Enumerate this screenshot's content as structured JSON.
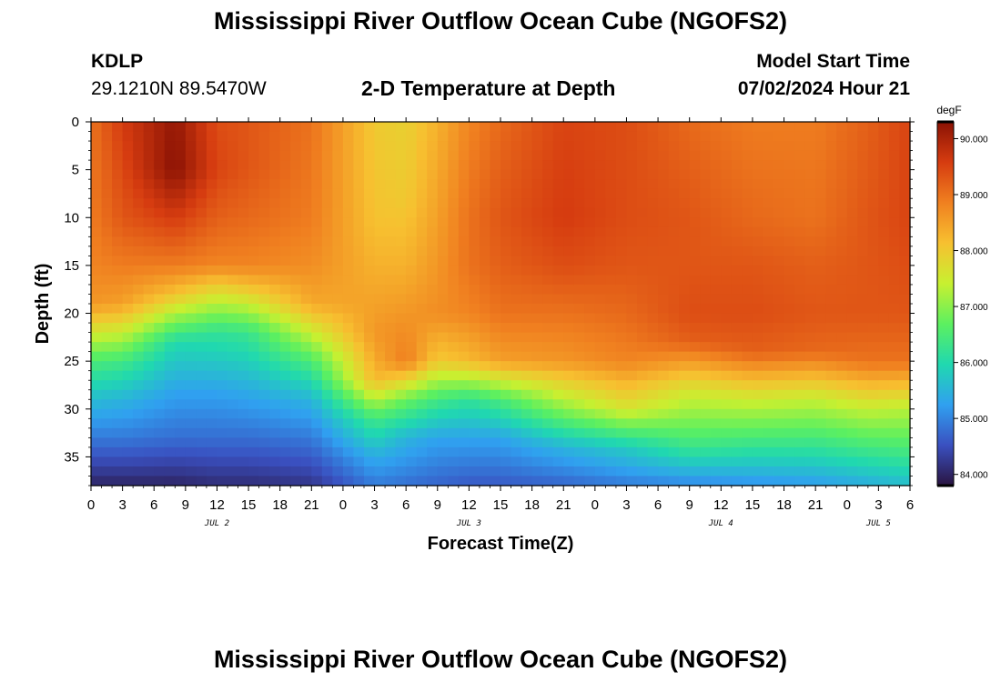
{
  "page": {
    "title_top": "Mississippi River Outflow Ocean Cube (NGOFS2)",
    "title_bottom": "Mississippi River Outflow Ocean Cube (NGOFS2)",
    "station": {
      "id": "KDLP",
      "coords": "29.1210N  89.5470W"
    },
    "subtitle": "2-D Temperature at Depth",
    "model_start": {
      "label": "Model Start Time",
      "value": "07/02/2024 Hour 21"
    }
  },
  "chart_data": {
    "type": "heatmap",
    "title": "2-D Temperature at Depth",
    "xlabel": "Forecast Time(Z)",
    "ylabel": "Depth (ft)",
    "x_hours_range": [
      0,
      78
    ],
    "x_tick_labels": [
      "0",
      "3",
      "6",
      "9",
      "12",
      "15",
      "18",
      "21",
      "0",
      "3",
      "6",
      "9",
      "12",
      "15",
      "18",
      "21",
      "0",
      "3",
      "6",
      "9",
      "12",
      "15",
      "18",
      "21",
      "0",
      "3",
      "6"
    ],
    "date_labels": [
      {
        "label": "JUL 2",
        "hour": 12
      },
      {
        "label": "JUL 3",
        "hour": 36
      },
      {
        "label": "JUL 4",
        "hour": 60
      },
      {
        "label": "JUL 5",
        "hour": 75
      }
    ],
    "ylim": [
      0,
      38
    ],
    "y_ticks": [
      0,
      5,
      10,
      15,
      20,
      25,
      30,
      35
    ],
    "colorbar": {
      "unit": "degF",
      "min": 83.8,
      "max": 90.3,
      "ticks": [
        84,
        85,
        86,
        87,
        88,
        89,
        90
      ],
      "tick_labels": [
        "84.000",
        "85.000",
        "86.000",
        "87.000",
        "88.000",
        "89.000",
        "90.000"
      ],
      "colors": [
        "#2a1440",
        "#3a50c0",
        "#30a0f0",
        "#20d8b0",
        "#5cf060",
        "#c8f030",
        "#f7c030",
        "#f08020",
        "#d63c10",
        "#8a1204"
      ]
    },
    "thermocline_depth_ft": {
      "hours": [
        0,
        3,
        6,
        9,
        12,
        15,
        18,
        21,
        24,
        27,
        30,
        33,
        36,
        39,
        42,
        45,
        48,
        51,
        54,
        57,
        60,
        63,
        66,
        69,
        72,
        75,
        78
      ],
      "values": [
        25.5,
        24.5,
        23.5,
        22,
        20.5,
        20,
        21,
        24,
        27.5,
        30,
        30.5,
        29,
        28.5,
        28.5,
        29,
        30.5,
        31.5,
        32.5,
        33,
        33.5,
        33.5,
        33.5,
        33.5,
        33,
        33,
        33.5,
        34
      ]
    },
    "profiles": [
      {
        "hour": 0,
        "depth_ft": [
          0,
          10,
          15,
          19,
          25,
          29,
          33,
          38
        ],
        "temp_f": [
          89.0,
          88.9,
          88.8,
          88.6,
          86.5,
          85.6,
          84.9,
          84.0
        ]
      },
      {
        "hour": 3,
        "depth_ft": [
          0,
          10,
          15,
          19,
          25,
          29,
          33,
          38
        ],
        "temp_f": [
          89.6,
          89.3,
          88.9,
          88.5,
          86.4,
          85.5,
          84.9,
          84.0
        ]
      },
      {
        "hour": 8,
        "depth_ft": [
          0,
          5,
          10,
          15,
          18,
          23,
          28,
          33,
          38
        ],
        "temp_f": [
          90.2,
          90.3,
          89.6,
          88.9,
          88.1,
          86.0,
          85.3,
          84.8,
          84.0
        ]
      },
      {
        "hour": 12,
        "depth_ft": [
          0,
          5,
          10,
          15,
          17,
          22,
          28,
          33,
          38
        ],
        "temp_f": [
          89.4,
          89.5,
          89.2,
          88.8,
          88.0,
          86.2,
          85.3,
          84.8,
          84.1
        ]
      },
      {
        "hour": 15,
        "depth_ft": [
          0,
          5,
          10,
          15,
          17,
          22,
          28,
          33,
          38
        ],
        "temp_f": [
          89.3,
          89.3,
          89.1,
          88.8,
          88.2,
          86.3,
          85.4,
          84.8,
          84.1
        ]
      },
      {
        "hour": 21,
        "depth_ft": [
          0,
          10,
          15,
          19,
          25,
          29,
          33,
          38
        ],
        "temp_f": [
          89.0,
          88.9,
          88.7,
          88.4,
          86.5,
          85.5,
          84.9,
          84.2
        ]
      },
      {
        "hour": 27,
        "depth_ft": [
          0,
          10,
          15,
          22,
          27,
          31,
          35,
          38
        ],
        "temp_f": [
          88.0,
          88.1,
          88.3,
          88.6,
          88.2,
          86.4,
          85.4,
          84.9
        ]
      },
      {
        "hour": 30,
        "depth_ft": [
          0,
          8,
          15,
          20,
          25,
          29,
          33,
          38
        ],
        "temp_f": [
          87.9,
          88.0,
          88.3,
          88.6,
          88.9,
          86.8,
          85.5,
          84.8
        ]
      },
      {
        "hour": 33,
        "depth_ft": [
          0,
          10,
          15,
          20,
          25,
          29,
          33,
          38
        ],
        "temp_f": [
          88.3,
          88.5,
          88.6,
          88.7,
          88.0,
          86.4,
          85.3,
          84.7
        ]
      },
      {
        "hour": 36,
        "depth_ft": [
          0,
          10,
          15,
          20,
          25,
          29,
          33,
          38
        ],
        "temp_f": [
          88.8,
          89.0,
          89.0,
          88.8,
          88.2,
          86.2,
          85.3,
          84.6
        ]
      },
      {
        "hour": 39,
        "depth_ft": [
          0,
          10,
          15,
          20,
          25,
          29,
          33,
          38
        ],
        "temp_f": [
          89.1,
          89.3,
          89.2,
          89.0,
          88.5,
          86.5,
          85.3,
          84.6
        ]
      },
      {
        "hour": 45,
        "depth_ft": [
          0,
          10,
          15,
          20,
          25,
          30,
          34,
          38
        ],
        "temp_f": [
          89.5,
          89.6,
          89.4,
          89.0,
          88.6,
          87.0,
          85.5,
          84.7
        ]
      },
      {
        "hour": 51,
        "depth_ft": [
          0,
          10,
          15,
          20,
          25,
          30,
          34,
          38
        ],
        "temp_f": [
          89.4,
          89.4,
          89.3,
          89.1,
          88.8,
          87.6,
          85.8,
          84.9
        ]
      },
      {
        "hour": 57,
        "depth_ft": [
          0,
          10,
          15,
          20,
          23,
          28,
          34,
          38
        ],
        "temp_f": [
          89.1,
          89.3,
          89.3,
          89.4,
          89.2,
          87.6,
          86.3,
          85.0
        ]
      },
      {
        "hour": 63,
        "depth_ft": [
          0,
          10,
          15,
          20,
          24,
          29,
          34,
          38
        ],
        "temp_f": [
          88.9,
          89.1,
          89.3,
          89.4,
          89.2,
          87.5,
          86.2,
          85.1
        ]
      },
      {
        "hour": 69,
        "depth_ft": [
          0,
          10,
          15,
          20,
          24,
          29,
          34,
          38
        ],
        "temp_f": [
          88.9,
          89.0,
          89.2,
          89.3,
          89.1,
          87.4,
          86.2,
          85.2
        ]
      },
      {
        "hour": 74,
        "depth_ft": [
          0,
          10,
          15,
          20,
          25,
          30,
          34,
          38
        ],
        "temp_f": [
          89.2,
          89.3,
          89.3,
          89.3,
          89.0,
          87.4,
          86.4,
          85.4
        ]
      },
      {
        "hour": 78,
        "depth_ft": [
          0,
          10,
          15,
          20,
          25,
          30,
          34,
          38
        ],
        "temp_f": [
          89.5,
          89.5,
          89.4,
          89.3,
          89.0,
          87.3,
          86.5,
          85.6
        ]
      }
    ]
  }
}
